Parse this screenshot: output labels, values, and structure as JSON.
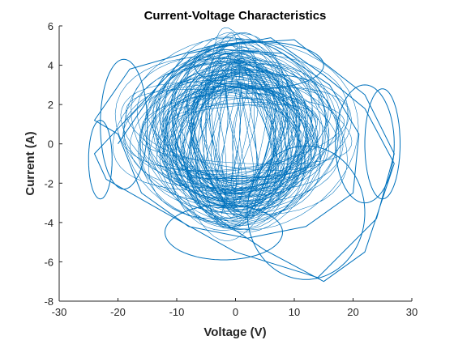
{
  "chart_data": {
    "type": "line",
    "title": "Current-Voltage Characteristics",
    "xlabel": "Voltage (V)",
    "ylabel": "Current (A)",
    "xlim": [
      -30,
      30
    ],
    "ylim": [
      -8,
      6
    ],
    "xticks": [
      "-30",
      "-20",
      "-10",
      "0",
      "10",
      "20",
      "30"
    ],
    "yticks": [
      "-8",
      "-6",
      "-4",
      "-2",
      "0",
      "2",
      "4",
      "6"
    ],
    "grid": false,
    "line_color": "#0072BD",
    "series": [
      {
        "description_of_shape": "dense chaotic trajectory of overlapping elliptical loops centered near (0, 0.5)",
        "x": [
          -20,
          -12,
          -2,
          8,
          16,
          21,
          20,
          12,
          2,
          -8,
          -16,
          -20,
          -24,
          -18,
          -4,
          10,
          22,
          27,
          24,
          14,
          0,
          -12,
          -22,
          -24,
          -8,
          6,
          15,
          22,
          27,
          22,
          15,
          5,
          -6,
          -10
        ],
        "y": [
          0,
          3.5,
          4.8,
          4.6,
          3,
          0.5,
          -2.5,
          -4.2,
          -4.8,
          -4.2,
          -2.5,
          0.5,
          1.2,
          3.8,
          5,
          5.3,
          2.5,
          -0.5,
          -3.8,
          -6.8,
          -5.5,
          -3.5,
          -1.8,
          -0.5,
          4.6,
          5.4,
          3.5,
          1.8,
          -1,
          -5.5,
          -7,
          -5.4,
          -3.2,
          0
        ]
      }
    ]
  }
}
